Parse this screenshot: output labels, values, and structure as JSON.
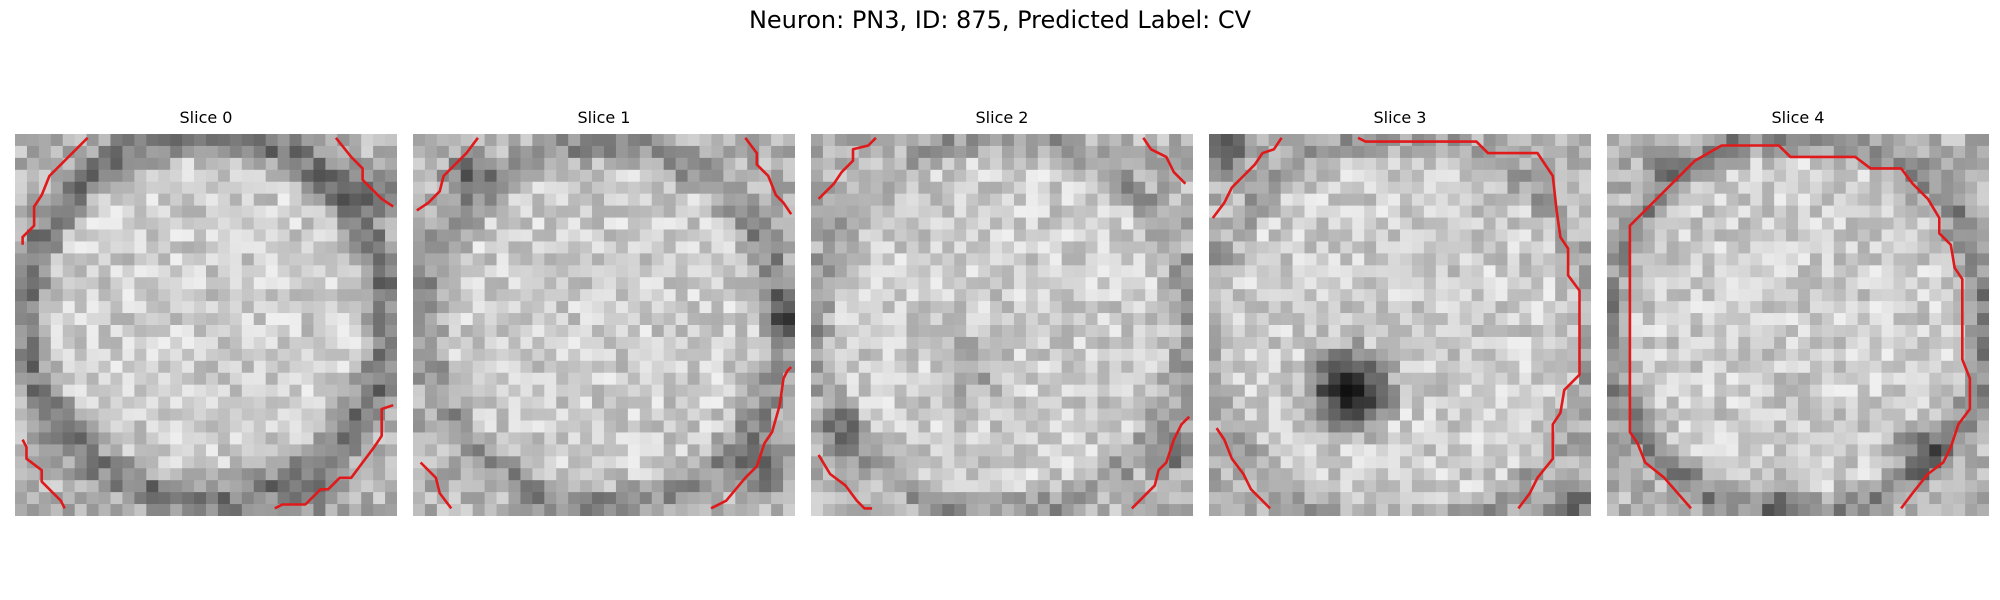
{
  "figure": {
    "title": "Neuron: PN3, ID: 875, Predicted Label: CV",
    "contour_color": "#e0191b"
  },
  "panels": [
    {
      "title": "Slice 0"
    },
    {
      "title": "Slice 1"
    },
    {
      "title": "Slice 2"
    },
    {
      "title": "Slice 3"
    },
    {
      "title": "Slice 4"
    }
  ]
}
